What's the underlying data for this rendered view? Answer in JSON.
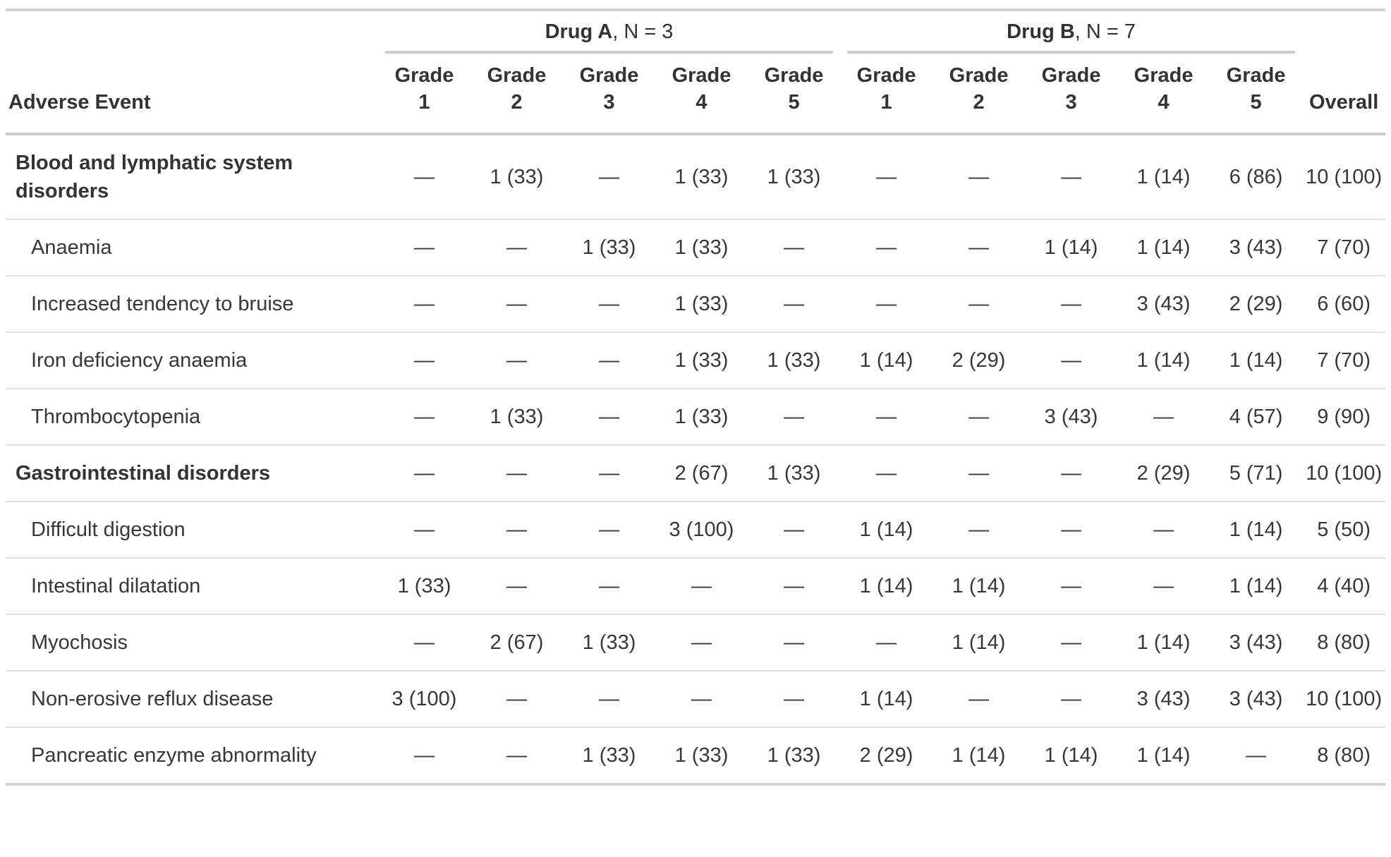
{
  "table": {
    "header": {
      "adverse_event": "Adverse Event",
      "overall": "Overall",
      "grade_word": "Grade",
      "grade_numbers": [
        "1",
        "2",
        "3",
        "4",
        "5"
      ],
      "spanners": [
        {
          "name": "Drug A",
          "suffix": ", N = 3"
        },
        {
          "name": "Drug B",
          "suffix": ", N = 7"
        }
      ]
    },
    "rows": [
      {
        "label": "Blood and lymphatic system disorders",
        "group": true,
        "values": [
          "—",
          "1 (33)",
          "—",
          "1 (33)",
          "1 (33)",
          "—",
          "—",
          "—",
          "1 (14)",
          "6 (86)"
        ],
        "overall": "10 (100)"
      },
      {
        "label": "Anaemia",
        "group": false,
        "values": [
          "—",
          "—",
          "1 (33)",
          "1 (33)",
          "—",
          "—",
          "—",
          "1 (14)",
          "1 (14)",
          "3 (43)"
        ],
        "overall": "7 (70)"
      },
      {
        "label": "Increased tendency to bruise",
        "group": false,
        "values": [
          "—",
          "—",
          "—",
          "1 (33)",
          "—",
          "—",
          "—",
          "—",
          "3 (43)",
          "2 (29)"
        ],
        "overall": "6 (60)"
      },
      {
        "label": "Iron deficiency anaemia",
        "group": false,
        "values": [
          "—",
          "—",
          "—",
          "1 (33)",
          "1 (33)",
          "1 (14)",
          "2 (29)",
          "—",
          "1 (14)",
          "1 (14)"
        ],
        "overall": "7 (70)"
      },
      {
        "label": "Thrombocytopenia",
        "group": false,
        "values": [
          "—",
          "1 (33)",
          "—",
          "1 (33)",
          "—",
          "—",
          "—",
          "3 (43)",
          "—",
          "4 (57)"
        ],
        "overall": "9 (90)"
      },
      {
        "label": "Gastrointestinal disorders",
        "group": true,
        "values": [
          "—",
          "—",
          "—",
          "2 (67)",
          "1 (33)",
          "—",
          "—",
          "—",
          "2 (29)",
          "5 (71)"
        ],
        "overall": "10 (100)"
      },
      {
        "label": "Difficult digestion",
        "group": false,
        "values": [
          "—",
          "—",
          "—",
          "3 (100)",
          "—",
          "1 (14)",
          "—",
          "—",
          "—",
          "1 (14)"
        ],
        "overall": "5 (50)"
      },
      {
        "label": "Intestinal dilatation",
        "group": false,
        "values": [
          "1 (33)",
          "—",
          "—",
          "—",
          "—",
          "1 (14)",
          "1 (14)",
          "—",
          "—",
          "1 (14)"
        ],
        "overall": "4 (40)"
      },
      {
        "label": "Myochosis",
        "group": false,
        "values": [
          "—",
          "2 (67)",
          "1 (33)",
          "—",
          "—",
          "—",
          "1 (14)",
          "—",
          "1 (14)",
          "3 (43)"
        ],
        "overall": "8 (80)"
      },
      {
        "label": "Non-erosive reflux disease",
        "group": false,
        "values": [
          "3 (100)",
          "—",
          "—",
          "—",
          "—",
          "1 (14)",
          "—",
          "—",
          "3 (43)",
          "3 (43)"
        ],
        "overall": "10 (100)"
      },
      {
        "label": "Pancreatic enzyme abnormality",
        "group": false,
        "values": [
          "—",
          "—",
          "1 (33)",
          "1 (33)",
          "1 (33)",
          "2 (29)",
          "1 (14)",
          "1 (14)",
          "1 (14)",
          "—"
        ],
        "overall": "8 (80)"
      }
    ],
    "colors": {
      "text": "#373737",
      "header_text": "#333333",
      "border_strong": "#d2d2d2",
      "border_light": "#e0e0e0"
    }
  }
}
